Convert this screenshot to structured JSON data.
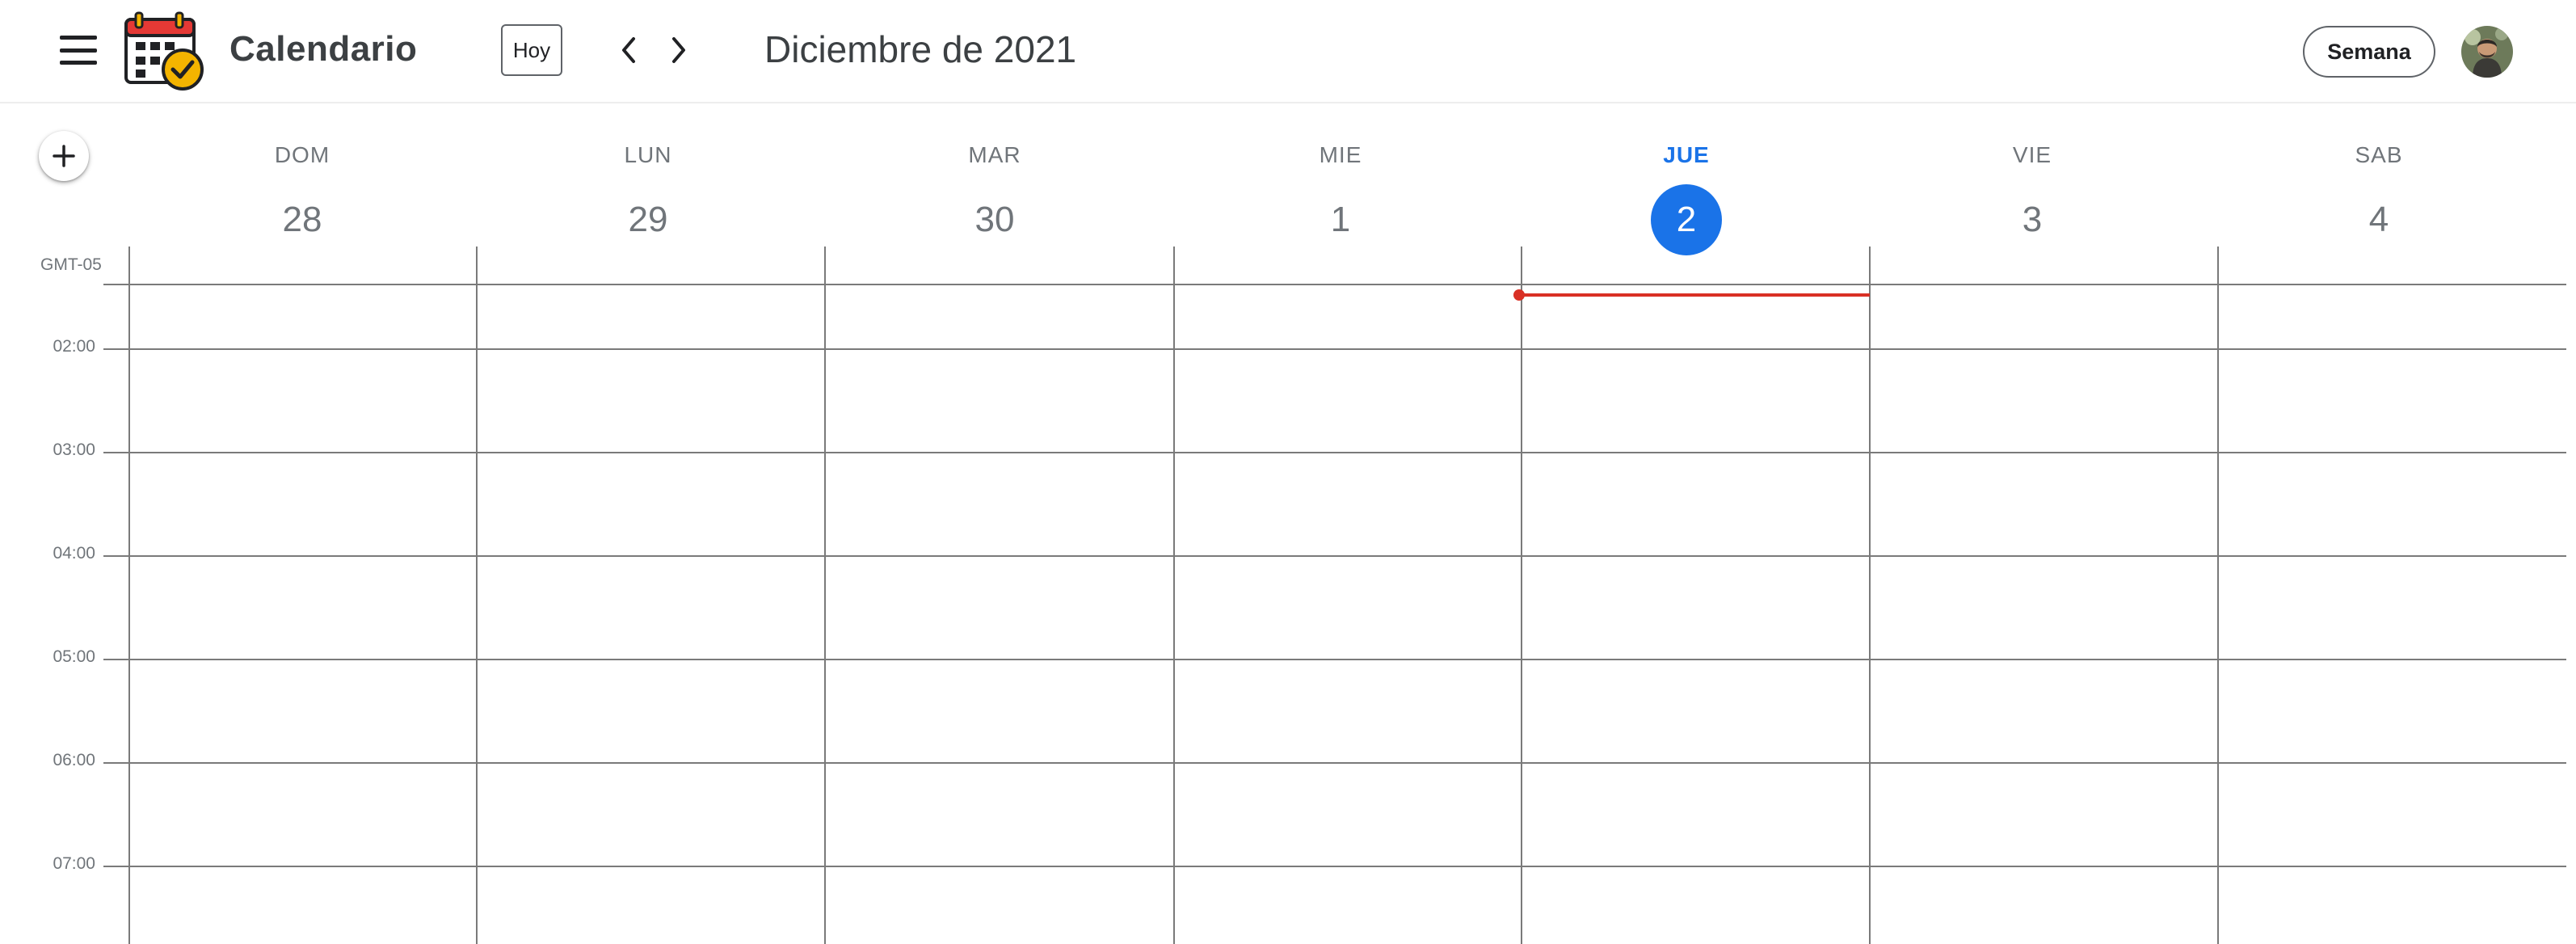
{
  "app": {
    "title": "Calendario",
    "today_button": "Hoy",
    "month_label": "Diciembre de 2021",
    "view_button": "Semana"
  },
  "colors": {
    "accent": "#1a73e8",
    "now_indicator": "#d93025",
    "grid_line": "#7a7a7a"
  },
  "icons": {
    "menu": "hamburger-menu-icon",
    "logo": "calendar-check-icon",
    "prev": "chevron-left-icon",
    "next": "chevron-right-icon",
    "add": "plus-icon",
    "avatar": "user-avatar"
  },
  "timezone": "GMT-05",
  "days": [
    {
      "name": "DOM",
      "number": "28",
      "today": false
    },
    {
      "name": "LUN",
      "number": "29",
      "today": false
    },
    {
      "name": "MAR",
      "number": "30",
      "today": false
    },
    {
      "name": "MIE",
      "number": "1",
      "today": false
    },
    {
      "name": "JUE",
      "number": "2",
      "today": true
    },
    {
      "name": "VIE",
      "number": "3",
      "today": false
    },
    {
      "name": "SAB",
      "number": "4",
      "today": false
    }
  ],
  "hours": [
    "02:00",
    "03:00",
    "04:00",
    "05:00",
    "06:00",
    "07:00"
  ]
}
